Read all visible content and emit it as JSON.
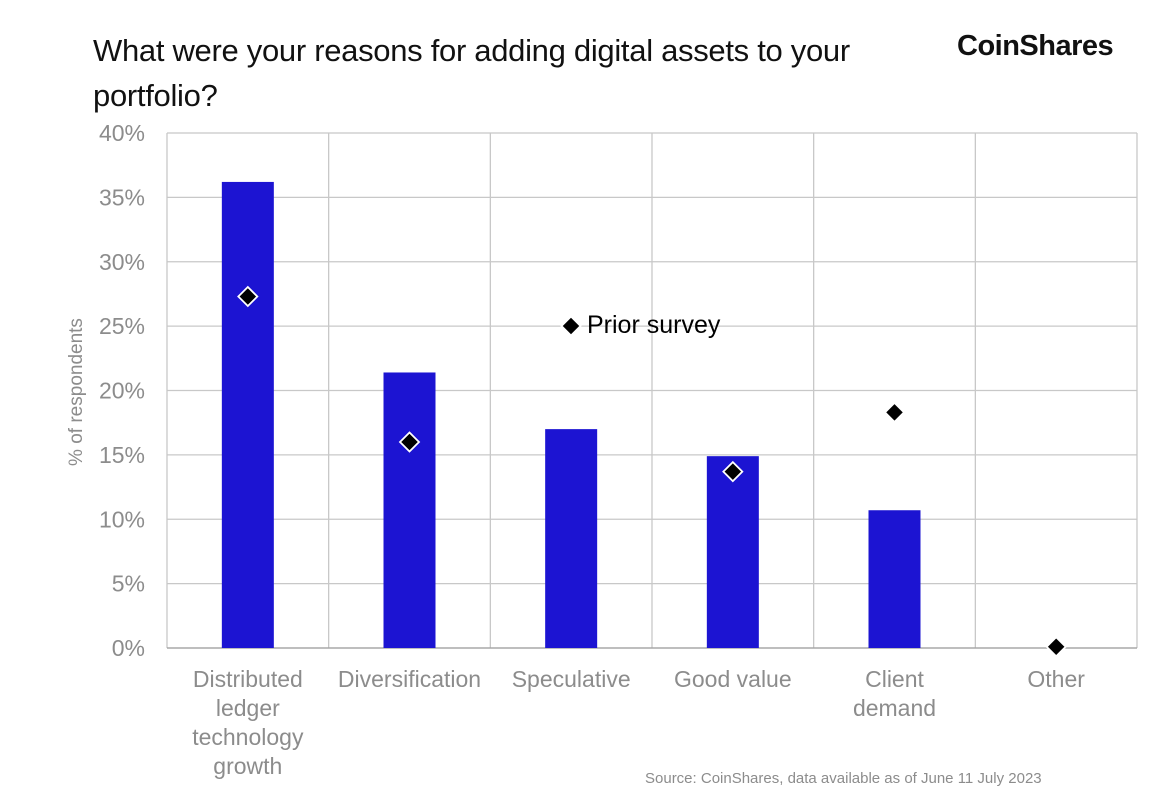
{
  "title": "What were your reasons for adding digital assets to your portfolio?",
  "brand": "CoinShares",
  "source": "Source: CoinShares, data available as of June 11 July 2023",
  "colors": {
    "bar": "#1c14d2",
    "marker": "#000000",
    "grid": "#c8c8c8",
    "text_axis": "#8c8c8c"
  },
  "chart_data": {
    "type": "bar",
    "categories": [
      "Distributed ledger technology growth",
      "Diversification",
      "Speculative",
      "Good value",
      "Client demand",
      "Other"
    ],
    "category_lines": [
      [
        "Distributed",
        "ledger",
        "technology",
        "growth"
      ],
      [
        "Diversification"
      ],
      [
        "Speculative"
      ],
      [
        "Good value"
      ],
      [
        "Client",
        "demand"
      ],
      [
        "Other"
      ]
    ],
    "series": [
      {
        "values": [
          36.2,
          21.4,
          17.0,
          14.9,
          10.7,
          0
        ]
      },
      {
        "name": "Prior survey",
        "values": [
          27.3,
          16.0,
          null,
          13.7,
          18.3,
          0.1
        ]
      }
    ],
    "ylabel": "% of respondents",
    "ylim": [
      0,
      40
    ],
    "yticks": [
      "0%",
      "5%",
      "10%",
      "15%",
      "20%",
      "25%",
      "30%",
      "35%",
      "40%"
    ],
    "grid": true,
    "legend_label": "Prior survey",
    "legend_position": "center"
  }
}
